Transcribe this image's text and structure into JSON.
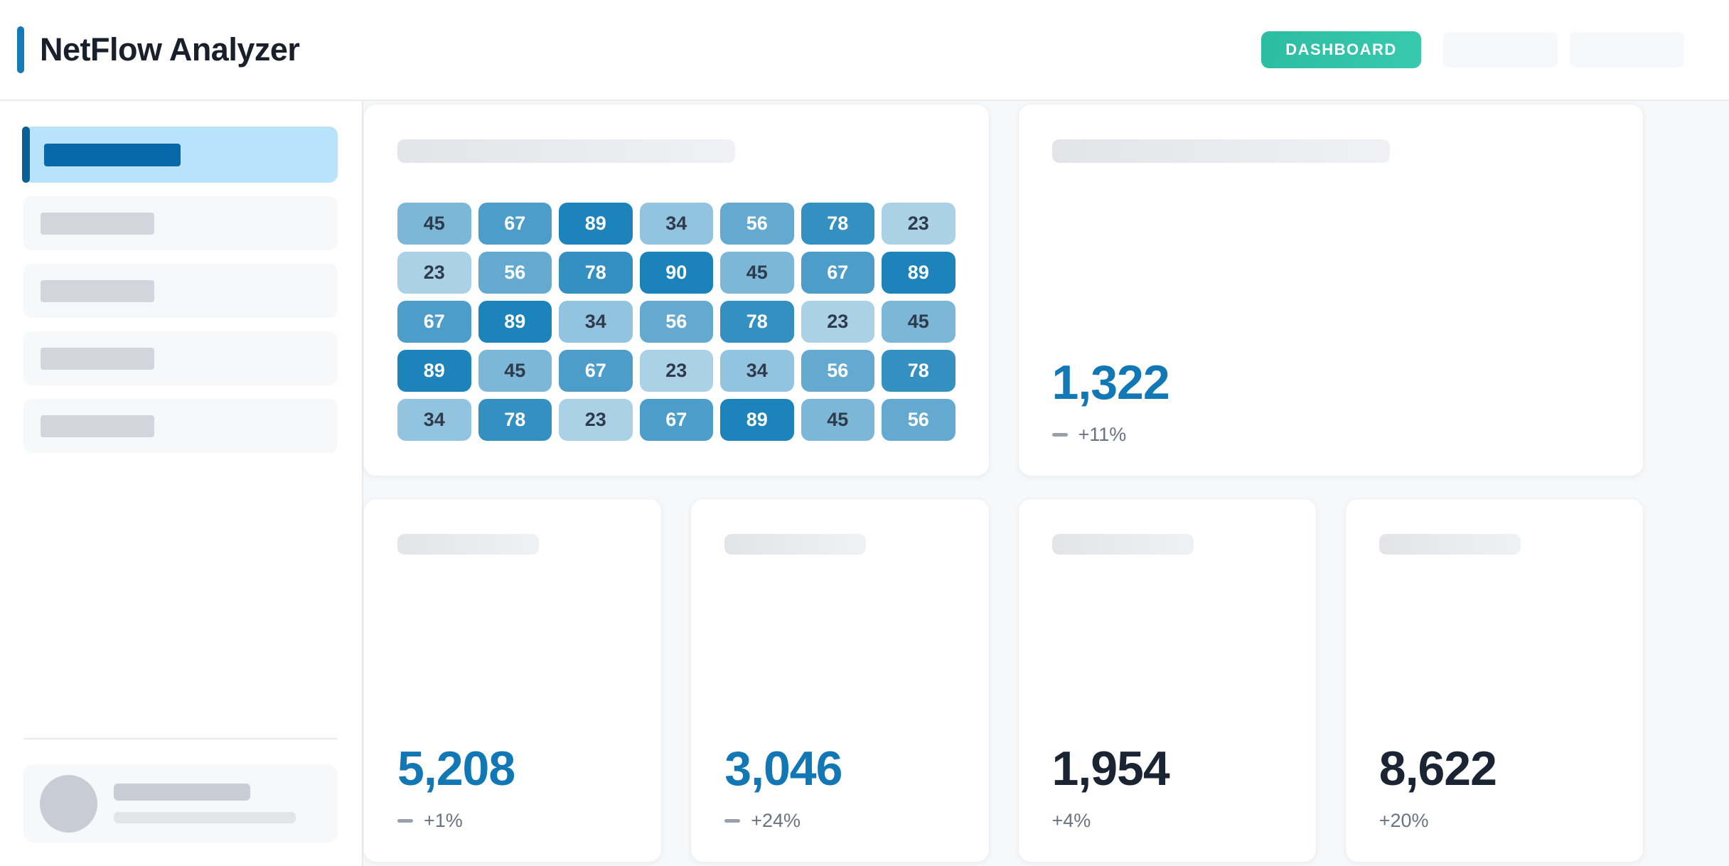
{
  "app": {
    "title": "NetFlow Analyzer"
  },
  "header": {
    "dashboard_label": "DASHBOARD"
  },
  "colors": {
    "accent_blue": "#147AB8",
    "teal_from": "#2CBCA3",
    "teal_to": "#38C9AE",
    "stat_blue": "#1277B5",
    "stat_dark": "#1B2433"
  },
  "chart_data": {
    "type": "heatmap",
    "rows": 5,
    "cols": 7,
    "values": [
      [
        45,
        67,
        89,
        34,
        56,
        78,
        23
      ],
      [
        23,
        56,
        78,
        90,
        45,
        67,
        89
      ],
      [
        67,
        89,
        34,
        56,
        78,
        23,
        45
      ],
      [
        89,
        45,
        67,
        23,
        34,
        56,
        78
      ],
      [
        34,
        78,
        23,
        67,
        89,
        45,
        56
      ]
    ],
    "scale": {
      "min": 23,
      "max": 90,
      "color_low": "#ABD1E6",
      "color_high": "#1B82BA",
      "text_dark": "#2E3B4B",
      "text_light": "#FFFFFF",
      "text_light_threshold": 50
    }
  },
  "stats": {
    "primary": {
      "value": "1,322",
      "change": "+11%",
      "trend_icon": true,
      "accent": "blue"
    },
    "cards": [
      {
        "value": "5,208",
        "change": "+1%",
        "trend_icon": true,
        "accent": "blue"
      },
      {
        "value": "3,046",
        "change": "+24%",
        "trend_icon": true,
        "accent": "blue"
      },
      {
        "value": "1,954",
        "change": "+4%",
        "trend_icon": false,
        "accent": "dark"
      },
      {
        "value": "8,622",
        "change": "+20%",
        "trend_icon": false,
        "accent": "dark"
      }
    ]
  }
}
